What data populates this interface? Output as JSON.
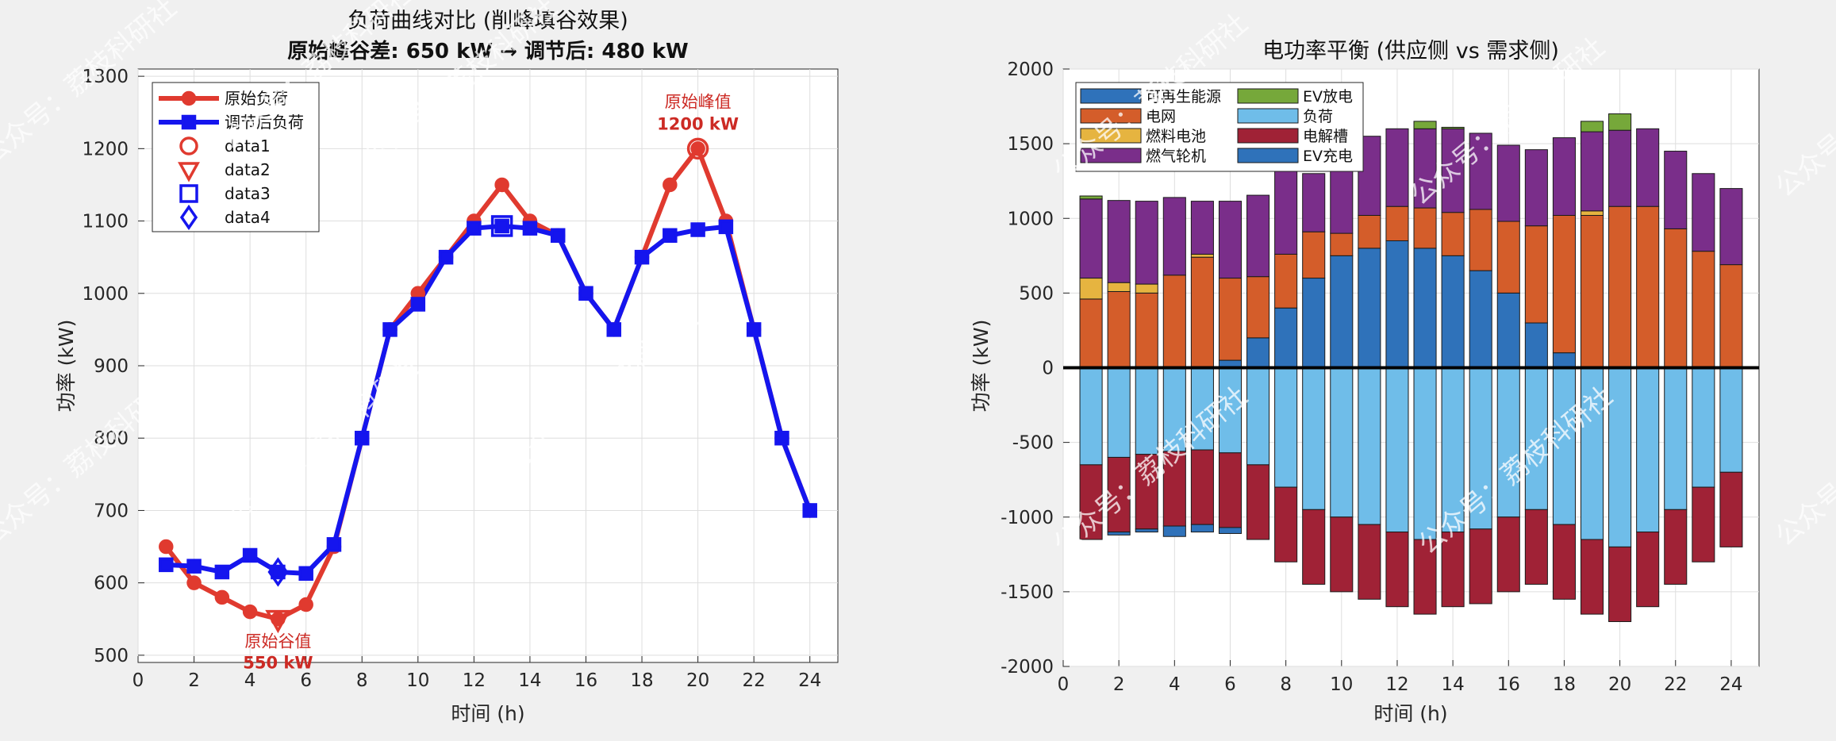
{
  "chart_data": [
    {
      "type": "line",
      "title": "负荷曲线对比 (削峰填谷效果)",
      "subtitle": "原始峰谷差: 650 kW → 调节后: 480 kW",
      "xlabel": "时间 (h)",
      "ylabel": "功率 (kW)",
      "xlim": [
        0,
        25
      ],
      "ylim": [
        490,
        1310
      ],
      "xticks": [
        0,
        2,
        4,
        6,
        8,
        10,
        12,
        14,
        16,
        18,
        20,
        22,
        24
      ],
      "yticks": [
        500,
        600,
        700,
        800,
        900,
        1000,
        1100,
        1200,
        1300
      ],
      "grid": true,
      "legend_position": "top-left",
      "x": [
        1,
        2,
        3,
        4,
        5,
        6,
        7,
        8,
        9,
        10,
        11,
        12,
        13,
        14,
        15,
        16,
        17,
        18,
        19,
        20,
        21,
        22,
        23,
        24
      ],
      "series": [
        {
          "name": "原始负荷",
          "color": "#e03a2f",
          "marker": "circle",
          "values": [
            650,
            600,
            580,
            560,
            550,
            570,
            650,
            800,
            950,
            1000,
            1050,
            1100,
            1150,
            1100,
            1080,
            1000,
            950,
            1050,
            1150,
            1200,
            1100,
            950,
            800,
            700
          ]
        },
        {
          "name": "调节后负荷",
          "color": "#1515ee",
          "marker": "square",
          "values": [
            625,
            623,
            615,
            638,
            615,
            613,
            653,
            800,
            950,
            985,
            1050,
            1090,
            1093,
            1090,
            1080,
            1000,
            950,
            1050,
            1080,
            1088,
            1092,
            950,
            800,
            700
          ]
        }
      ],
      "legend_extra": [
        {
          "name": "data1",
          "color": "#e03a2f",
          "marker": "circle-open"
        },
        {
          "name": "data2",
          "color": "#e03a2f",
          "marker": "triangle-down-open"
        },
        {
          "name": "data3",
          "color": "#1515ee",
          "marker": "square-open"
        },
        {
          "name": "data4",
          "color": "#1515ee",
          "marker": "diamond-open"
        }
      ],
      "highlight_markers": [
        {
          "x": 20,
          "y": 1200,
          "marker": "circle-open",
          "color": "#e03a2f"
        },
        {
          "x": 5,
          "y": 550,
          "marker": "triangle-down-open",
          "color": "#e03a2f"
        },
        {
          "x": 13,
          "y": 1093,
          "marker": "square-open",
          "color": "#1515ee"
        },
        {
          "x": 5,
          "y": 615,
          "marker": "diamond-open",
          "color": "#1515ee"
        }
      ],
      "annotations": [
        {
          "text": "原始峰值",
          "sub": "1200 kW",
          "x": 20,
          "y": 1200,
          "color": "#cc2a24",
          "position": "above"
        },
        {
          "text": "原始谷值",
          "sub": "550 kW",
          "x": 5,
          "y": 550,
          "color": "#cc2a24",
          "position": "below"
        }
      ]
    },
    {
      "type": "bar",
      "stacked": true,
      "title": "电功率平衡 (供应侧 vs 需求侧)",
      "xlabel": "时间 (h)",
      "ylabel": "功率 (kW)",
      "xlim": [
        0,
        25
      ],
      "ylim": [
        -2000,
        2000
      ],
      "xticks": [
        0,
        2,
        4,
        6,
        8,
        10,
        12,
        14,
        16,
        18,
        20,
        22,
        24
      ],
      "yticks": [
        -2000,
        -1500,
        -1000,
        -500,
        0,
        500,
        1000,
        1500,
        2000
      ],
      "grid": true,
      "legend_position": "top-left",
      "x": [
        1,
        2,
        3,
        4,
        5,
        6,
        7,
        8,
        9,
        10,
        11,
        12,
        13,
        14,
        15,
        16,
        17,
        18,
        19,
        20,
        21,
        22,
        23,
        24
      ],
      "supply_series": [
        {
          "name": "可再生能源",
          "color": "#2f72ba",
          "values": [
            0,
            0,
            0,
            0,
            0,
            50,
            200,
            400,
            600,
            750,
            800,
            850,
            800,
            750,
            650,
            500,
            300,
            100,
            0,
            0,
            0,
            0,
            0,
            0
          ]
        },
        {
          "name": "电网",
          "color": "#d45d2a",
          "values": [
            460,
            510,
            500,
            620,
            740,
            550,
            410,
            360,
            310,
            150,
            220,
            230,
            270,
            290,
            410,
            480,
            650,
            920,
            1020,
            1080,
            1080,
            930,
            780,
            690
          ]
        },
        {
          "name": "燃料电池",
          "color": "#e6b440",
          "values": [
            140,
            60,
            60,
            0,
            20,
            0,
            0,
            0,
            0,
            0,
            0,
            0,
            0,
            0,
            0,
            0,
            0,
            0,
            30,
            0,
            0,
            0,
            0,
            0
          ]
        },
        {
          "name": "燃气轮机",
          "color": "#7a2e8a",
          "values": [
            530,
            550,
            555,
            520,
            355,
            515,
            545,
            570,
            390,
            610,
            530,
            520,
            530,
            560,
            510,
            510,
            510,
            520,
            530,
            510,
            520,
            520,
            520,
            510
          ]
        },
        {
          "name": "EV放电",
          "color": "#76a83a",
          "values": [
            20,
            0,
            0,
            0,
            0,
            0,
            0,
            0,
            0,
            0,
            0,
            0,
            50,
            10,
            0,
            0,
            0,
            0,
            70,
            110,
            0,
            0,
            0,
            0
          ]
        }
      ],
      "demand_series": [
        {
          "name": "负荷",
          "color": "#6fbde9",
          "values": [
            -650,
            -600,
            -580,
            -560,
            -550,
            -570,
            -650,
            -800,
            -950,
            -1000,
            -1050,
            -1100,
            -1150,
            -1100,
            -1080,
            -1000,
            -950,
            -1050,
            -1150,
            -1200,
            -1100,
            -950,
            -800,
            -700
          ]
        },
        {
          "name": "电解槽",
          "color": "#a02236",
          "values": [
            -500,
            -500,
            -500,
            -500,
            -500,
            -500,
            -500,
            -500,
            -500,
            -500,
            -500,
            -500,
            -500,
            -500,
            -500,
            -500,
            -500,
            -500,
            -500,
            -500,
            -500,
            -500,
            -500,
            -500
          ]
        },
        {
          "name": "EV充电",
          "color": "#2f72ba",
          "values": [
            0,
            -20,
            -20,
            -70,
            -50,
            -40,
            0,
            0,
            0,
            0,
            0,
            0,
            0,
            0,
            0,
            0,
            0,
            0,
            0,
            0,
            0,
            0,
            0,
            0
          ]
        }
      ],
      "legend_order": [
        "可再生能源",
        "EV放电",
        "电网",
        "负荷",
        "燃料电池",
        "电解槽",
        "燃气轮机",
        "EV充电"
      ],
      "zero_line": true
    }
  ],
  "watermark": "公众号：荔枝科研社"
}
